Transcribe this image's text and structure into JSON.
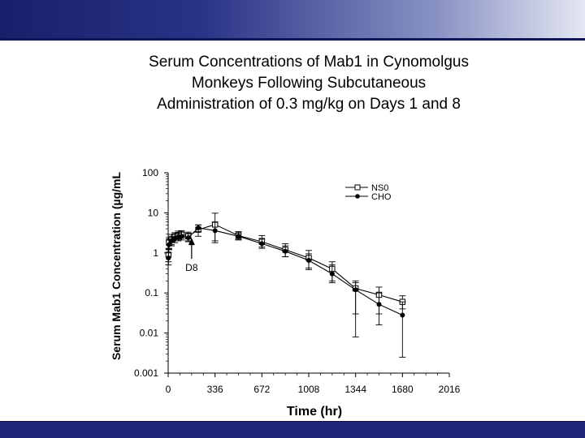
{
  "chart_data": {
    "type": "line",
    "title": [
      "Serum Concentrations of Mab1 in Cynomolgus",
      "Monkeys Following Subcutaneous",
      "Administration of 0.3 mg/kg on Days 1 and 8"
    ],
    "xlabel": "Time (hr)",
    "ylabel": "Serum Mab1 Concentration (µg/mL",
    "xlim": [
      0,
      2016
    ],
    "ylim": [
      0.001,
      100
    ],
    "ylog": true,
    "x_ticks": [
      0,
      336,
      672,
      1008,
      1344,
      1680,
      2016
    ],
    "y_ticks": [
      100,
      10,
      1,
      0.1,
      0.01,
      0.001
    ],
    "y_tick_labels": [
      "100",
      "10",
      "1",
      "0.1",
      "0.01",
      "0.001"
    ],
    "legend_position": "top-right",
    "annotation": {
      "text": "D8",
      "x": 168,
      "y": 2.5
    },
    "series": [
      {
        "name": "NS0",
        "marker": "open-square",
        "points": [
          {
            "x": 2,
            "y": 0.9,
            "lo": 0.6,
            "hi": 1.25
          },
          {
            "x": 6,
            "y": 1.8,
            "lo": 1.3,
            "hi": 2.4
          },
          {
            "x": 24,
            "y": 2.1,
            "lo": 1.6,
            "hi": 2.9
          },
          {
            "x": 48,
            "y": 2.5,
            "lo": 2.0,
            "hi": 3.2
          },
          {
            "x": 72,
            "y": 2.8,
            "lo": 2.2,
            "hi": 3.5
          },
          {
            "x": 96,
            "y": 2.9,
            "lo": 2.3,
            "hi": 3.6
          },
          {
            "x": 144,
            "y": 2.6,
            "lo": 2.0,
            "hi": 3.3
          },
          {
            "x": 216,
            "y": 3.8,
            "lo": 2.6,
            "hi": 5.0
          },
          {
            "x": 336,
            "y": 5.1,
            "lo": 2.0,
            "hi": 9.8
          },
          {
            "x": 504,
            "y": 2.7,
            "lo": 2.2,
            "hi": 3.4
          },
          {
            "x": 672,
            "y": 1.9,
            "lo": 1.4,
            "hi": 2.7
          },
          {
            "x": 840,
            "y": 1.2,
            "lo": 0.8,
            "hi": 1.7
          },
          {
            "x": 1008,
            "y": 0.75,
            "lo": 0.42,
            "hi": 1.15
          },
          {
            "x": 1176,
            "y": 0.4,
            "lo": 0.2,
            "hi": 0.6
          },
          {
            "x": 1344,
            "y": 0.13,
            "lo": 0.03,
            "hi": 0.2
          },
          {
            "x": 1512,
            "y": 0.09,
            "lo": 0.03,
            "hi": 0.14
          },
          {
            "x": 1680,
            "y": 0.06,
            "lo": 0.04,
            "hi": 0.085
          }
        ]
      },
      {
        "name": "CHO",
        "marker": "filled-circle",
        "points": [
          {
            "x": 2,
            "y": 0.75,
            "lo": 0.5,
            "hi": 1.0
          },
          {
            "x": 6,
            "y": 1.6,
            "lo": 1.2,
            "hi": 2.2
          },
          {
            "x": 24,
            "y": 2.0,
            "lo": 1.5,
            "hi": 2.6
          },
          {
            "x": 48,
            "y": 2.3,
            "lo": 1.8,
            "hi": 3.0
          },
          {
            "x": 72,
            "y": 2.5,
            "lo": 2.0,
            "hi": 3.1
          },
          {
            "x": 96,
            "y": 2.6,
            "lo": 2.1,
            "hi": 3.3
          },
          {
            "x": 144,
            "y": 2.4,
            "lo": 1.9,
            "hi": 3.1
          },
          {
            "x": 216,
            "y": 4.2,
            "lo": 3.4,
            "hi": 5.0
          },
          {
            "x": 336,
            "y": 3.6,
            "lo": 1.8,
            "hi": 5.8
          },
          {
            "x": 504,
            "y": 2.6,
            "lo": 2.1,
            "hi": 3.2
          },
          {
            "x": 672,
            "y": 1.7,
            "lo": 1.3,
            "hi": 2.3
          },
          {
            "x": 840,
            "y": 1.1,
            "lo": 0.8,
            "hi": 1.5
          },
          {
            "x": 1008,
            "y": 0.65,
            "lo": 0.38,
            "hi": 0.95
          },
          {
            "x": 1176,
            "y": 0.3,
            "lo": 0.18,
            "hi": 0.5
          },
          {
            "x": 1344,
            "y": 0.12,
            "lo": 0.008,
            "hi": 0.18
          },
          {
            "x": 1512,
            "y": 0.052,
            "lo": 0.016,
            "hi": 0.1
          },
          {
            "x": 1680,
            "y": 0.028,
            "lo": 0.0025,
            "hi": 0.06
          }
        ]
      }
    ]
  }
}
